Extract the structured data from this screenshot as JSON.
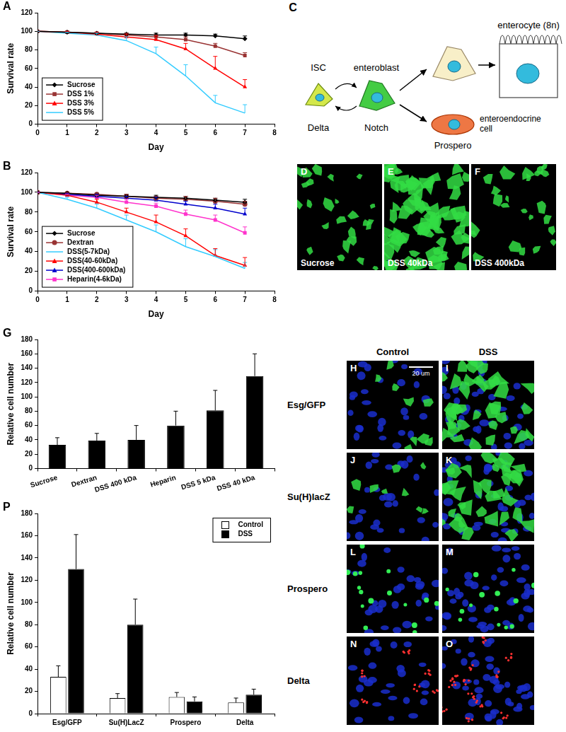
{
  "chart_data": [
    {
      "panel_label": "A",
      "type": "line",
      "x_label": "Day",
      "y_label": "Survival rate",
      "x": [
        0,
        1,
        2,
        3,
        4,
        5,
        6,
        7
      ],
      "xlim": [
        0,
        8
      ],
      "xticks": [
        0,
        1,
        2,
        3,
        4,
        5,
        6,
        7,
        8
      ],
      "ylim": [
        0,
        120
      ],
      "yticks": [
        0,
        20,
        40,
        60,
        80,
        100,
        120
      ],
      "grid": false,
      "legend": "lower left",
      "series": [
        {
          "name": "Sucrose",
          "color": "#000000",
          "marker": "diamond",
          "values": [
            100,
            99,
            98,
            97,
            96,
            96,
            95,
            92
          ],
          "errors": [
            0,
            1,
            1,
            1,
            2,
            2,
            2,
            3
          ]
        },
        {
          "name": "DSS 1%",
          "color": "#993333",
          "marker": "square",
          "values": [
            100,
            99,
            98,
            96,
            94,
            91,
            84,
            74
          ],
          "errors": [
            0,
            1,
            1,
            2,
            2,
            3,
            3,
            3
          ]
        },
        {
          "name": "DSS 3%",
          "color": "#ff0000",
          "marker": "triangle",
          "values": [
            100,
            99,
            97,
            94,
            91,
            81,
            60,
            40
          ],
          "errors": [
            0,
            1,
            2,
            3,
            4,
            6,
            13,
            8
          ]
        },
        {
          "name": "DSS 5%",
          "color": "#33ccff",
          "marker": "none",
          "values": [
            100,
            98,
            96,
            90,
            76,
            52,
            23,
            12
          ],
          "errors": [
            0,
            1,
            2,
            4,
            7,
            12,
            8,
            9
          ]
        }
      ]
    },
    {
      "panel_label": "B",
      "type": "line",
      "x_label": "Day",
      "y_label": "Survival rate",
      "x": [
        0,
        1,
        2,
        3,
        4,
        5,
        6,
        7
      ],
      "xlim": [
        0,
        8
      ],
      "xticks": [
        0,
        1,
        2,
        3,
        4,
        5,
        6,
        7,
        8
      ],
      "ylim": [
        0,
        120
      ],
      "yticks": [
        0,
        20,
        40,
        60,
        80,
        100,
        120
      ],
      "grid": false,
      "legend": "lower left",
      "series": [
        {
          "name": "Sucrose",
          "color": "#000000",
          "marker": "diamond",
          "values": [
            100,
            99,
            97,
            96,
            95,
            94,
            92,
            90
          ],
          "errors": [
            0,
            1,
            2,
            2,
            2,
            2,
            2,
            3
          ]
        },
        {
          "name": "Dextran",
          "color": "#993333",
          "marker": "circle",
          "values": [
            100,
            99,
            98,
            96,
            94,
            93,
            91,
            88
          ],
          "errors": [
            0,
            1,
            1,
            2,
            2,
            3,
            3,
            3
          ]
        },
        {
          "name": "DSS(5-7kDa)",
          "color": "#33ccff",
          "marker": "none",
          "values": [
            100,
            93,
            84,
            72,
            60,
            45,
            35,
            23
          ],
          "errors": [
            0,
            2,
            4,
            5,
            7,
            8,
            7,
            6
          ]
        },
        {
          "name": "DSS(40-60kDa)",
          "color": "#ff0000",
          "marker": "triangle",
          "values": [
            100,
            97,
            90,
            80,
            70,
            56,
            36,
            26
          ],
          "errors": [
            0,
            2,
            3,
            4,
            7,
            7,
            7,
            8
          ]
        },
        {
          "name": "DSS(400-600kDa)",
          "color": "#0000cc",
          "marker": "triangle",
          "values": [
            100,
            98,
            96,
            94,
            92,
            88,
            84,
            78
          ],
          "errors": [
            0,
            1,
            2,
            2,
            3,
            3,
            4,
            6
          ]
        },
        {
          "name": "Heparin(4-6kDa)",
          "color": "#ff33cc",
          "marker": "square",
          "values": [
            100,
            97,
            95,
            90,
            86,
            78,
            72,
            59
          ],
          "errors": [
            0,
            1,
            2,
            3,
            3,
            4,
            5,
            6
          ]
        }
      ]
    },
    {
      "panel_label": "G",
      "type": "bar",
      "y_label": "Relative cell number",
      "categories": [
        "Sucrose",
        "Dextran",
        "DSS 400 kDa",
        "Heparin",
        "DSS 5 kDa",
        "DSS 40 kDa"
      ],
      "values": [
        33,
        39,
        40,
        60,
        81,
        129
      ],
      "errors": [
        10,
        10,
        20,
        20,
        28,
        31
      ],
      "color": "#000000",
      "ylim": [
        0,
        180
      ],
      "yticks": [
        0,
        20,
        40,
        60,
        80,
        100,
        120,
        140,
        160,
        180
      ],
      "grid": false
    },
    {
      "panel_label": "P",
      "type": "bar",
      "y_label": "Relative cell number",
      "categories": [
        "Esg/GFP",
        "Su(H)LacZ",
        "Prospero",
        "Delta"
      ],
      "series": [
        {
          "name": "Control",
          "color": "#ffffff",
          "values": [
            33,
            14,
            15,
            10
          ],
          "errors": [
            10,
            4,
            4,
            4
          ]
        },
        {
          "name": "DSS",
          "color": "#000000",
          "values": [
            130,
            80,
            11,
            17
          ],
          "errors": [
            31,
            23,
            4,
            5
          ]
        }
      ],
      "ylim": [
        0,
        180
      ],
      "yticks": [
        0,
        20,
        40,
        60,
        80,
        100,
        120,
        140,
        160,
        180
      ],
      "grid": false,
      "legend": "upper right"
    }
  ],
  "diagram": {
    "panel_label": "C",
    "cells": [
      {
        "label": "ISC",
        "expression": "Delta"
      },
      {
        "label": "enteroblast",
        "expression": "Notch"
      },
      {
        "label": "enterocyte (8n)"
      },
      {
        "label": "enteroendocrine cell",
        "expression": "Prospero"
      }
    ]
  },
  "images": {
    "top_row": [
      {
        "panel_label": "D",
        "label": "Sucrose"
      },
      {
        "panel_label": "E",
        "label": "DSS 40kDa"
      },
      {
        "panel_label": "F",
        "label": "DSS 400kDa"
      }
    ],
    "grid": {
      "columns": [
        "Control",
        "DSS"
      ],
      "rows": [
        {
          "label": "Esg/GFP",
          "panels": [
            "H",
            "I"
          ]
        },
        {
          "label": "Su(H)lacZ",
          "panels": [
            "J",
            "K"
          ]
        },
        {
          "label": "Prospero",
          "panels": [
            "L",
            "M"
          ]
        },
        {
          "label": "Delta",
          "panels": [
            "N",
            "O"
          ]
        }
      ],
      "scale_bar": "20 um"
    }
  }
}
